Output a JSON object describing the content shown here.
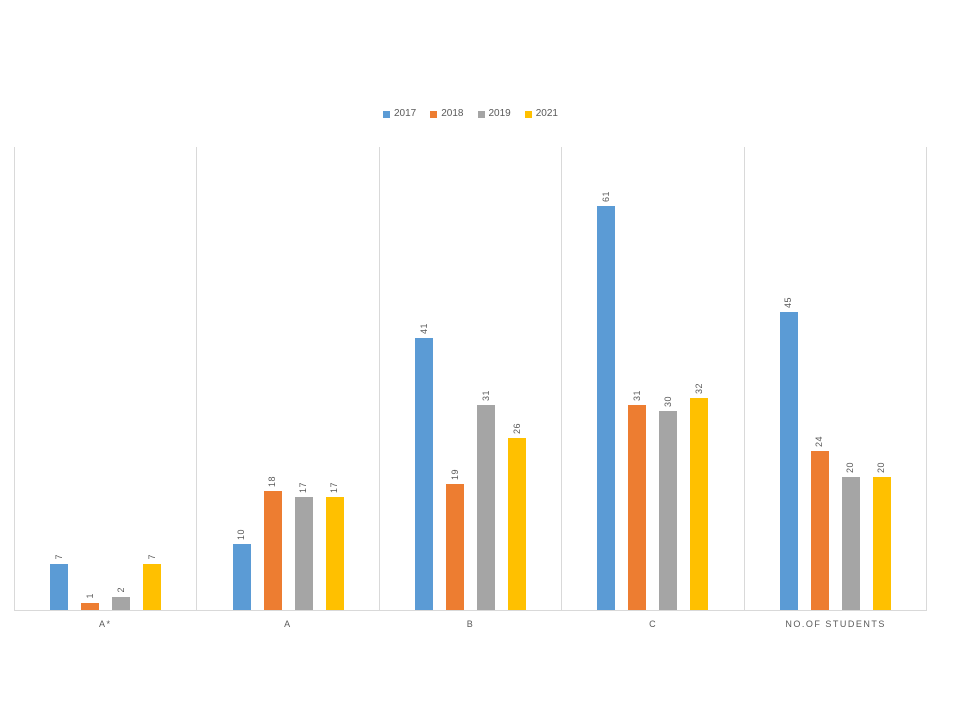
{
  "chart_data": {
    "type": "bar",
    "title": "",
    "xlabel": "",
    "ylabel": "",
    "categories": [
      "A*",
      "A",
      "B",
      "C",
      "NO.OF STUDENTS"
    ],
    "series": [
      {
        "name": "2017",
        "color": "#5b9bd5",
        "values": [
          7,
          10,
          41,
          61,
          45
        ]
      },
      {
        "name": "2018",
        "color": "#ed7d31",
        "values": [
          1,
          18,
          19,
          31,
          24
        ]
      },
      {
        "name": "2019",
        "color": "#a5a5a5",
        "values": [
          2,
          17,
          31,
          30,
          20
        ]
      },
      {
        "name": "2021",
        "color": "#ffc000",
        "values": [
          7,
          17,
          26,
          32,
          20
        ]
      }
    ],
    "data_labels": {
      "visible": true,
      "orientation": "rotated-90-bottom-to-top",
      "values_by_category": [
        {
          "category": "A*",
          "labels": [
            "7",
            "1",
            "2",
            "7"
          ]
        },
        {
          "category": "A",
          "labels": [
            "10",
            "18",
            "17",
            "17"
          ]
        },
        {
          "category": "B",
          "labels": [
            "41",
            "19",
            "31",
            "26"
          ]
        },
        {
          "category": "C",
          "labels": [
            "61",
            "31",
            "30",
            "32"
          ]
        },
        {
          "category": "NO.OF STUDENTS",
          "labels": [
            "45",
            "24",
            "20",
            "20"
          ]
        }
      ]
    },
    "ylim": [
      0,
      70
    ],
    "grid": "vertical-category-boundaries-only",
    "legend_position": "top-center"
  },
  "colors": {
    "background": "#ffffff",
    "gridline": "#d9d9d9",
    "axis_line": "#d9d9d9",
    "text": "#595959"
  }
}
